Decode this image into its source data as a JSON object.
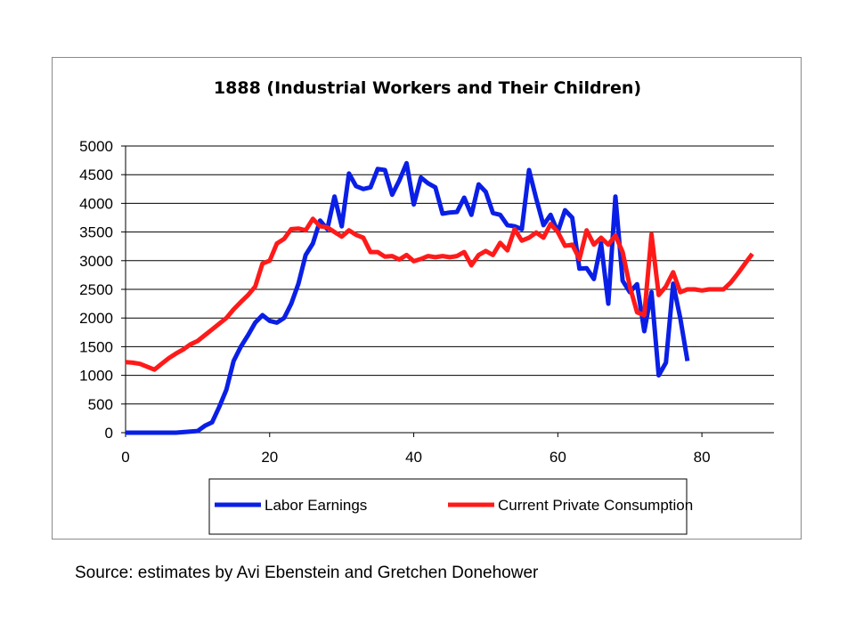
{
  "source_note": "Source: estimates by Avi Ebenstein and Gretchen Donehower",
  "chart_data": {
    "type": "line",
    "title": "1888 (Industrial Workers and Their Children)",
    "xlabel": "",
    "ylabel": "",
    "xlim": [
      0,
      90
    ],
    "ylim": [
      0,
      5000
    ],
    "xticks": [
      0,
      20,
      40,
      60,
      80
    ],
    "yticks": [
      0,
      500,
      1000,
      1500,
      2000,
      2500,
      3000,
      3500,
      4000,
      4500,
      5000
    ],
    "grid": "horizontal",
    "legend_position": "bottom",
    "series": [
      {
        "name": "Labor Earnings",
        "color": "#0a1fe6",
        "points": [
          [
            0,
            0
          ],
          [
            1,
            0
          ],
          [
            2,
            0
          ],
          [
            3,
            0
          ],
          [
            4,
            0
          ],
          [
            5,
            0
          ],
          [
            6,
            0
          ],
          [
            7,
            0
          ],
          [
            8,
            10
          ],
          [
            9,
            20
          ],
          [
            10,
            30
          ],
          [
            11,
            120
          ],
          [
            12,
            180
          ],
          [
            13,
            450
          ],
          [
            14,
            750
          ],
          [
            15,
            1250
          ],
          [
            16,
            1500
          ],
          [
            17,
            1700
          ],
          [
            18,
            1920
          ],
          [
            19,
            2050
          ],
          [
            20,
            1950
          ],
          [
            21,
            1920
          ],
          [
            22,
            2000
          ],
          [
            23,
            2250
          ],
          [
            24,
            2600
          ],
          [
            25,
            3100
          ],
          [
            26,
            3300
          ],
          [
            27,
            3700
          ],
          [
            28,
            3550
          ],
          [
            29,
            4120
          ],
          [
            30,
            3600
          ],
          [
            31,
            4520
          ],
          [
            32,
            4300
          ],
          [
            33,
            4250
          ],
          [
            34,
            4280
          ],
          [
            35,
            4600
          ],
          [
            36,
            4580
          ],
          [
            37,
            4150
          ],
          [
            38,
            4400
          ],
          [
            39,
            4700
          ],
          [
            40,
            3980
          ],
          [
            41,
            4450
          ],
          [
            42,
            4350
          ],
          [
            43,
            4280
          ],
          [
            44,
            3820
          ],
          [
            45,
            3840
          ],
          [
            46,
            3850
          ],
          [
            47,
            4100
          ],
          [
            48,
            3800
          ],
          [
            49,
            4330
          ],
          [
            50,
            4200
          ],
          [
            51,
            3830
          ],
          [
            52,
            3800
          ],
          [
            53,
            3620
          ],
          [
            54,
            3600
          ],
          [
            55,
            3550
          ],
          [
            56,
            4580
          ],
          [
            57,
            4080
          ],
          [
            58,
            3620
          ],
          [
            59,
            3800
          ],
          [
            60,
            3500
          ],
          [
            61,
            3880
          ],
          [
            62,
            3750
          ],
          [
            63,
            2860
          ],
          [
            64,
            2870
          ],
          [
            65,
            2680
          ],
          [
            66,
            3300
          ],
          [
            67,
            2250
          ],
          [
            68,
            4120
          ],
          [
            69,
            2650
          ],
          [
            70,
            2450
          ],
          [
            71,
            2590
          ],
          [
            72,
            1770
          ],
          [
            73,
            2450
          ],
          [
            74,
            1000
          ],
          [
            75,
            1220
          ],
          [
            76,
            2600
          ],
          [
            77,
            2000
          ],
          [
            78,
            1250
          ]
        ]
      },
      {
        "name": "Current Private Consumption",
        "color": "#ff1a1a",
        "points": [
          [
            0,
            1230
          ],
          [
            1,
            1220
          ],
          [
            2,
            1200
          ],
          [
            3,
            1150
          ],
          [
            4,
            1100
          ],
          [
            5,
            1200
          ],
          [
            6,
            1300
          ],
          [
            7,
            1380
          ],
          [
            8,
            1450
          ],
          [
            9,
            1540
          ],
          [
            10,
            1600
          ],
          [
            11,
            1700
          ],
          [
            12,
            1800
          ],
          [
            13,
            1900
          ],
          [
            14,
            2000
          ],
          [
            15,
            2150
          ],
          [
            16,
            2280
          ],
          [
            17,
            2400
          ],
          [
            18,
            2550
          ],
          [
            19,
            2950
          ],
          [
            20,
            3000
          ],
          [
            21,
            3300
          ],
          [
            22,
            3380
          ],
          [
            23,
            3550
          ],
          [
            24,
            3560
          ],
          [
            25,
            3530
          ],
          [
            26,
            3730
          ],
          [
            27,
            3600
          ],
          [
            28,
            3580
          ],
          [
            29,
            3500
          ],
          [
            30,
            3420
          ],
          [
            31,
            3530
          ],
          [
            32,
            3450
          ],
          [
            33,
            3400
          ],
          [
            34,
            3150
          ],
          [
            35,
            3150
          ],
          [
            36,
            3070
          ],
          [
            37,
            3080
          ],
          [
            38,
            3020
          ],
          [
            39,
            3100
          ],
          [
            40,
            2990
          ],
          [
            41,
            3030
          ],
          [
            42,
            3080
          ],
          [
            43,
            3060
          ],
          [
            44,
            3080
          ],
          [
            45,
            3060
          ],
          [
            46,
            3080
          ],
          [
            47,
            3150
          ],
          [
            48,
            2920
          ],
          [
            49,
            3100
          ],
          [
            50,
            3170
          ],
          [
            51,
            3100
          ],
          [
            52,
            3310
          ],
          [
            53,
            3180
          ],
          [
            54,
            3550
          ],
          [
            55,
            3350
          ],
          [
            56,
            3400
          ],
          [
            57,
            3490
          ],
          [
            58,
            3400
          ],
          [
            59,
            3640
          ],
          [
            60,
            3500
          ],
          [
            61,
            3260
          ],
          [
            62,
            3280
          ],
          [
            63,
            3030
          ],
          [
            64,
            3530
          ],
          [
            65,
            3280
          ],
          [
            66,
            3400
          ],
          [
            67,
            3280
          ],
          [
            68,
            3440
          ],
          [
            69,
            3150
          ],
          [
            70,
            2550
          ],
          [
            71,
            2100
          ],
          [
            72,
            2050
          ],
          [
            73,
            3460
          ],
          [
            74,
            2400
          ],
          [
            75,
            2550
          ],
          [
            76,
            2800
          ],
          [
            77,
            2450
          ],
          [
            78,
            2500
          ],
          [
            79,
            2500
          ],
          [
            80,
            2480
          ],
          [
            81,
            2500
          ],
          [
            82,
            2500
          ],
          [
            83,
            2500
          ],
          [
            84,
            2620
          ],
          [
            85,
            2780
          ],
          [
            86,
            2950
          ],
          [
            87,
            3120
          ]
        ]
      }
    ]
  }
}
